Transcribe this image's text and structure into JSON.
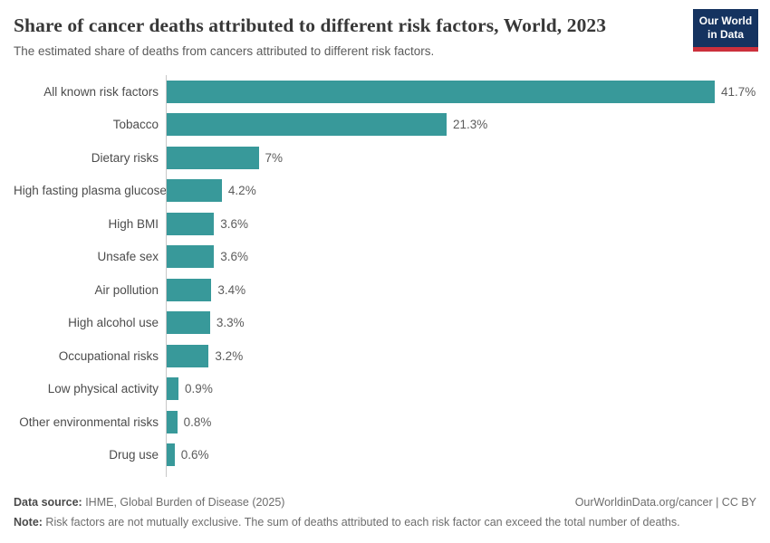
{
  "header": {
    "title": "Share of cancer deaths attributed to different risk factors, World, 2023",
    "subtitle": "The estimated share of deaths from cancers attributed to different risk factors.",
    "logo_line1": "Our World",
    "logo_line2": "in Data"
  },
  "chart_data": {
    "type": "bar",
    "orientation": "horizontal",
    "title": "Share of cancer deaths attributed to different risk factors, World, 2023",
    "categories": [
      "All known risk factors",
      "Tobacco",
      "Dietary risks",
      "High fasting plasma glucose",
      "High BMI",
      "Unsafe sex",
      "Air pollution",
      "High alcohol use",
      "Occupational risks",
      "Low physical activity",
      "Other environmental risks",
      "Drug use"
    ],
    "values": [
      41.7,
      21.3,
      7,
      4.2,
      3.6,
      3.6,
      3.4,
      3.3,
      3.2,
      0.9,
      0.8,
      0.6
    ],
    "value_labels": [
      "41.7%",
      "21.3%",
      "7%",
      "4.2%",
      "3.6%",
      "3.6%",
      "3.4%",
      "3.3%",
      "3.2%",
      "0.9%",
      "0.8%",
      "0.6%"
    ],
    "xlabel": "",
    "ylabel": "",
    "xlim": [
      0,
      41.7
    ],
    "grid": false,
    "legend_position": "none",
    "bar_color": "#38999a",
    "axis_line_color": "#c8c8c8"
  },
  "footer": {
    "data_source_label": "Data source:",
    "data_source_value": " IHME, Global Burden of Disease (2025)",
    "link": "OurWorldinData.org/cancer | CC BY",
    "note_label": "Note:",
    "note_value": " Risk factors are not mutually exclusive. The sum of deaths attributed to each risk factor can exceed the total number of deaths."
  }
}
